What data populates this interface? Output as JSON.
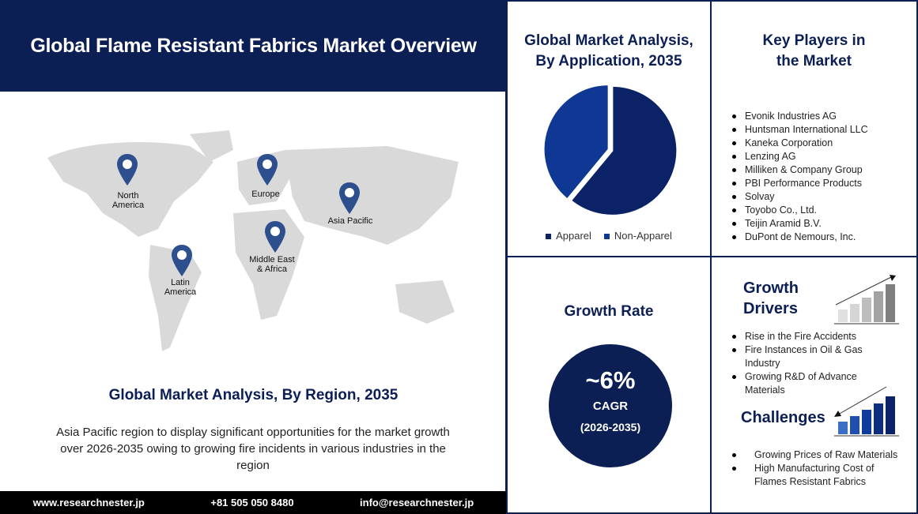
{
  "header": {
    "title": "Global Flame Resistant Fabrics Market Overview"
  },
  "map": {
    "regions": [
      {
        "name": "North America",
        "line1": "North",
        "line2": "America"
      },
      {
        "name": "Europe",
        "line1": "Europe",
        "line2": ""
      },
      {
        "name": "Asia Pacific",
        "line1": "Asia Pacific",
        "line2": ""
      },
      {
        "name": "Middle East & Africa",
        "line1": "Middle East",
        "line2": "& Africa"
      },
      {
        "name": "Latin America",
        "line1": "Latin",
        "line2": "America"
      }
    ],
    "pin_color": "#2d4f8e"
  },
  "region": {
    "title": "Global Market Analysis, By Region, 2035",
    "desc": "Asia Pacific region to display significant opportunities for the market growth over  2026-2035   owing to growing fire incidents in various industries in the region"
  },
  "footer": {
    "website": "www.researchnester.jp",
    "phone": "+81 505 050 8480",
    "email": "info@researchnester.jp"
  },
  "application": {
    "title_line1": "Global Market Analysis,",
    "title_line2": "By Application, 2035"
  },
  "chart_data": {
    "type": "pie",
    "categories": [
      "Apparel",
      "Non-Apparel"
    ],
    "values": [
      61,
      39
    ],
    "colors": [
      "#0b2266",
      "#0e3893"
    ],
    "legend": "bottom"
  },
  "key_players": {
    "title_line1": "Key Players in",
    "title_line2": "the Market",
    "items": [
      "Evonik Industries AG",
      "Huntsman International LLC",
      "Kaneka Corporation",
      "Lenzing AG",
      "Milliken & Company Group",
      "PBI Performance Products",
      "Solvay",
      "Toyobo Co., Ltd.",
      "Teijin Aramid B.V.",
      "DuPont de Nemours, Inc."
    ]
  },
  "growth": {
    "title": "Growth Rate",
    "value": "~6%",
    "label": "CAGR",
    "period": "(2026-2035)"
  },
  "drivers": {
    "title_line1": "Growth",
    "title_line2": "Drivers",
    "items": [
      "Rise in the Fire Accidents",
      "Fire Instances in Oil & Gas Industry",
      "Growing R&D of Advance Materials"
    ]
  },
  "challenges": {
    "title": "Challenges",
    "items": [
      "Growing Prices of Raw Materials",
      "High Manufacturing Cost of Flames Resistant Fabrics"
    ]
  }
}
